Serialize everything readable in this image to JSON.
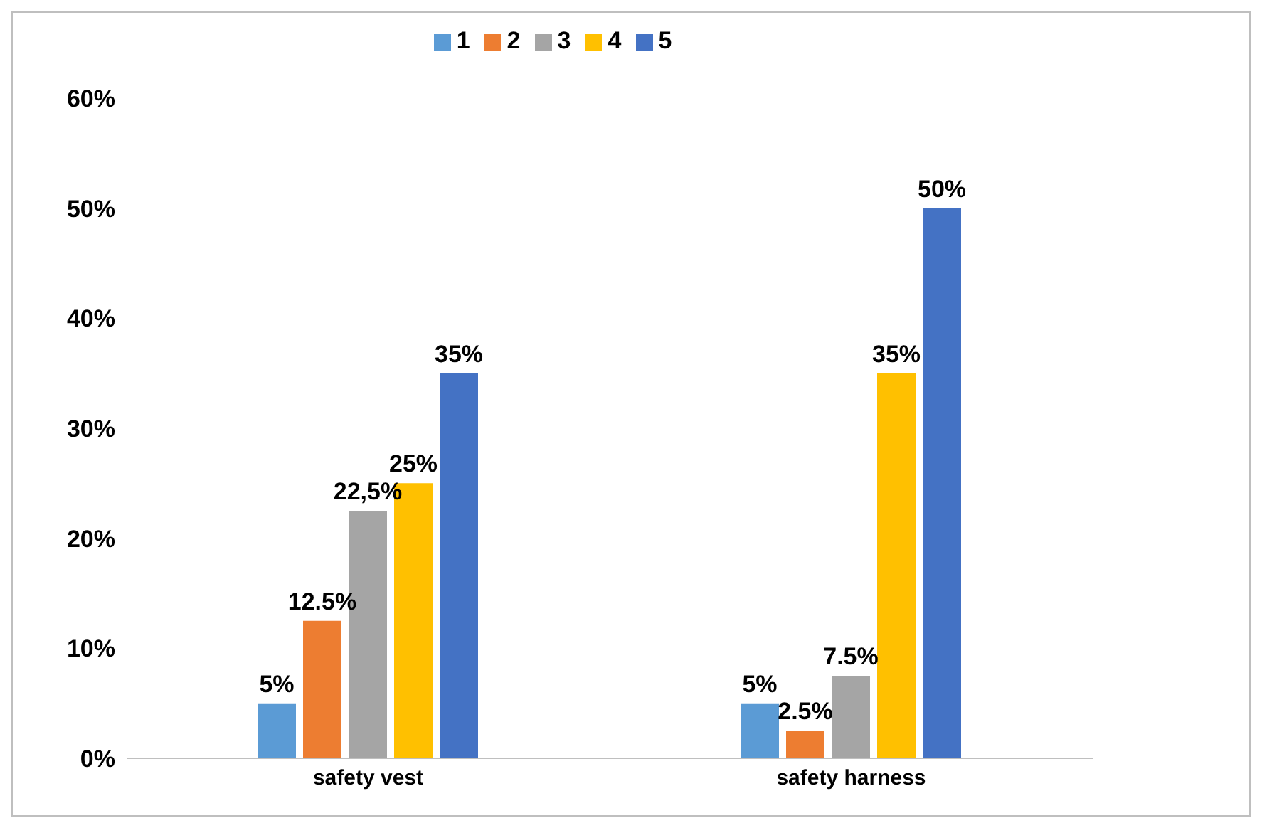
{
  "chart_data": {
    "type": "bar",
    "categories": [
      "safety vest",
      "safety harness"
    ],
    "series": [
      {
        "name": "1",
        "color": "#5b9bd5",
        "values": [
          5,
          5
        ],
        "value_labels": [
          "5%",
          "5%"
        ]
      },
      {
        "name": "2",
        "color": "#ed7d31",
        "values": [
          12.5,
          2.5
        ],
        "value_labels": [
          "12.5%",
          "2.5%"
        ]
      },
      {
        "name": "3",
        "color": "#a5a5a5",
        "values": [
          22.5,
          7.5
        ],
        "value_labels": [
          "22,5%",
          "7.5%"
        ]
      },
      {
        "name": "4",
        "color": "#ffc000",
        "values": [
          25,
          35
        ],
        "value_labels": [
          "25%",
          "35%"
        ]
      },
      {
        "name": "5",
        "color": "#4472c4",
        "values": [
          35,
          50
        ],
        "value_labels": [
          "35%",
          "50%"
        ]
      }
    ],
    "ylim": [
      0,
      60
    ],
    "yticks": [
      {
        "value": 0,
        "label": "0%"
      },
      {
        "value": 10,
        "label": "10%"
      },
      {
        "value": 20,
        "label": "20%"
      },
      {
        "value": 30,
        "label": "30%"
      },
      {
        "value": 40,
        "label": "40%"
      },
      {
        "value": 50,
        "label": "50%"
      },
      {
        "value": 60,
        "label": "60%"
      }
    ],
    "grid": false,
    "legend": "top"
  }
}
